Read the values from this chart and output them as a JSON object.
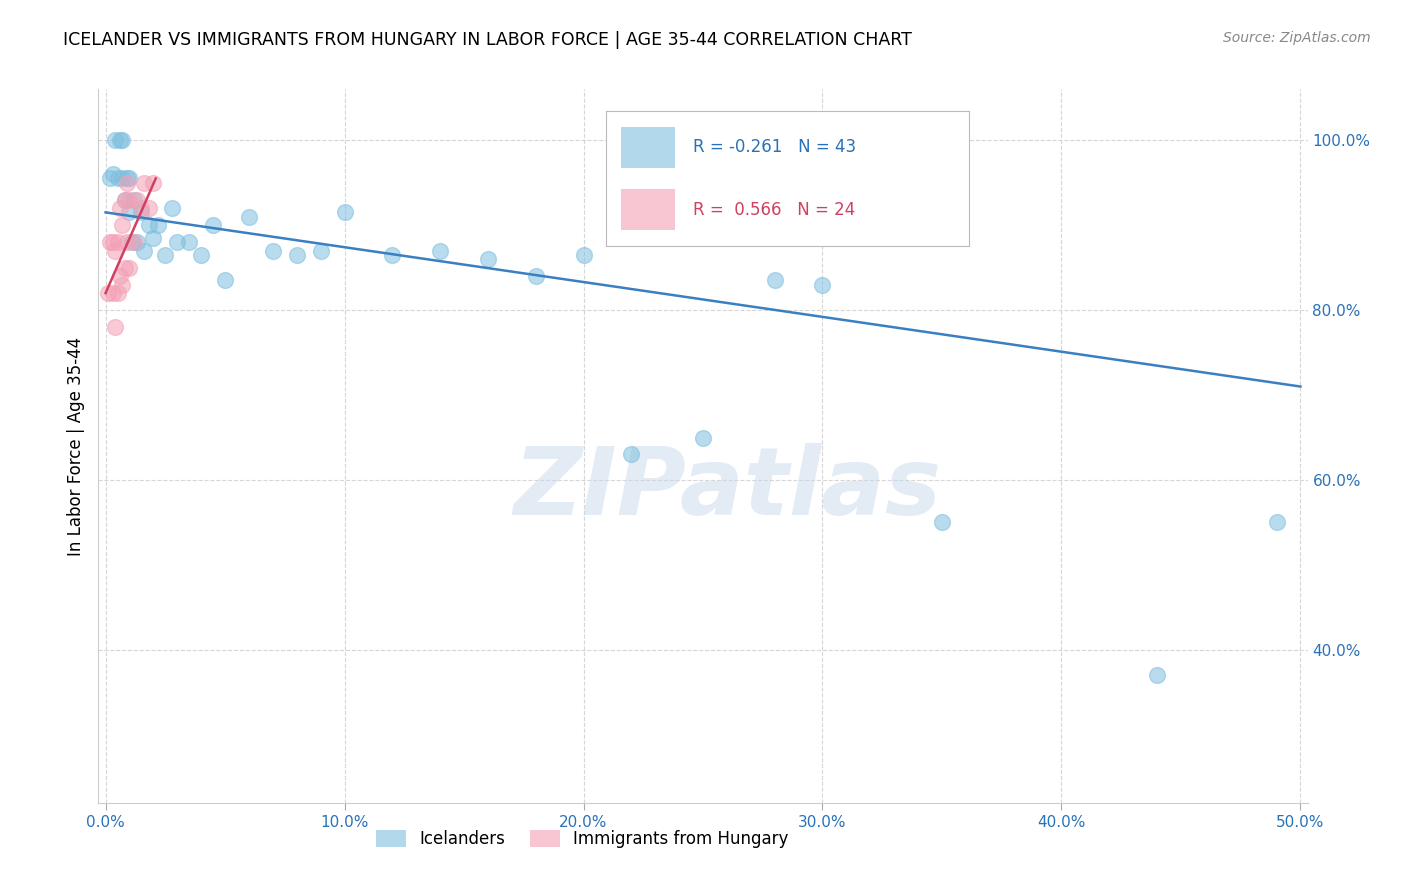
{
  "title": "ICELANDER VS IMMIGRANTS FROM HUNGARY IN LABOR FORCE | AGE 35-44 CORRELATION CHART",
  "source": "Source: ZipAtlas.com",
  "ylabel": "In Labor Force | Age 35-44",
  "xlim": [
    -0.003,
    0.503
  ],
  "ylim": [
    0.22,
    1.06
  ],
  "xticks": [
    0.0,
    0.1,
    0.2,
    0.3,
    0.4,
    0.5
  ],
  "xtick_labels": [
    "0.0%",
    "10.0%",
    "20.0%",
    "30.0%",
    "40.0%",
    "50.0%"
  ],
  "yticks": [
    0.4,
    0.6,
    0.8,
    1.0
  ],
  "ytick_labels": [
    "40.0%",
    "60.0%",
    "80.0%",
    "100.0%"
  ],
  "grid_color": "#cccccc",
  "background_color": "#ffffff",
  "blue_color": "#7fbfdf",
  "pink_color": "#f4a0b5",
  "blue_line_color": "#3a7fc1",
  "pink_line_color": "#d04060",
  "R_blue": -0.261,
  "N_blue": 43,
  "R_pink": 0.566,
  "N_pink": 24,
  "watermark": "ZIPatlas",
  "legend_labels": [
    "Icelanders",
    "Immigrants from Hungary"
  ],
  "blue_x": [
    0.002,
    0.003,
    0.004,
    0.005,
    0.006,
    0.007,
    0.007,
    0.008,
    0.009,
    0.01,
    0.01,
    0.011,
    0.012,
    0.013,
    0.015,
    0.016,
    0.018,
    0.02,
    0.022,
    0.025,
    0.028,
    0.03,
    0.035,
    0.04,
    0.045,
    0.05,
    0.06,
    0.07,
    0.08,
    0.09,
    0.1,
    0.12,
    0.14,
    0.16,
    0.18,
    0.2,
    0.22,
    0.25,
    0.28,
    0.3,
    0.35,
    0.44,
    0.49
  ],
  "blue_y": [
    0.955,
    0.96,
    1.0,
    0.955,
    1.0,
    0.955,
    1.0,
    0.93,
    0.955,
    0.915,
    0.955,
    0.88,
    0.93,
    0.88,
    0.915,
    0.87,
    0.9,
    0.885,
    0.9,
    0.865,
    0.92,
    0.88,
    0.88,
    0.865,
    0.9,
    0.835,
    0.91,
    0.87,
    0.865,
    0.87,
    0.915,
    0.865,
    0.87,
    0.86,
    0.84,
    0.865,
    0.63,
    0.65,
    0.835,
    0.83,
    0.55,
    0.37,
    0.55
  ],
  "pink_x": [
    0.001,
    0.002,
    0.003,
    0.003,
    0.004,
    0.004,
    0.005,
    0.005,
    0.006,
    0.006,
    0.007,
    0.007,
    0.008,
    0.008,
    0.009,
    0.009,
    0.01,
    0.01,
    0.012,
    0.013,
    0.015,
    0.016,
    0.018,
    0.02
  ],
  "pink_y": [
    0.82,
    0.88,
    0.82,
    0.88,
    0.78,
    0.87,
    0.82,
    0.88,
    0.84,
    0.92,
    0.83,
    0.9,
    0.85,
    0.93,
    0.88,
    0.95,
    0.85,
    0.93,
    0.88,
    0.93,
    0.92,
    0.95,
    0.92,
    0.95
  ],
  "blue_line_x": [
    0.0,
    0.5
  ],
  "blue_line_y": [
    0.915,
    0.71
  ],
  "pink_line_x": [
    0.0,
    0.021
  ],
  "pink_line_y": [
    0.82,
    0.955
  ]
}
